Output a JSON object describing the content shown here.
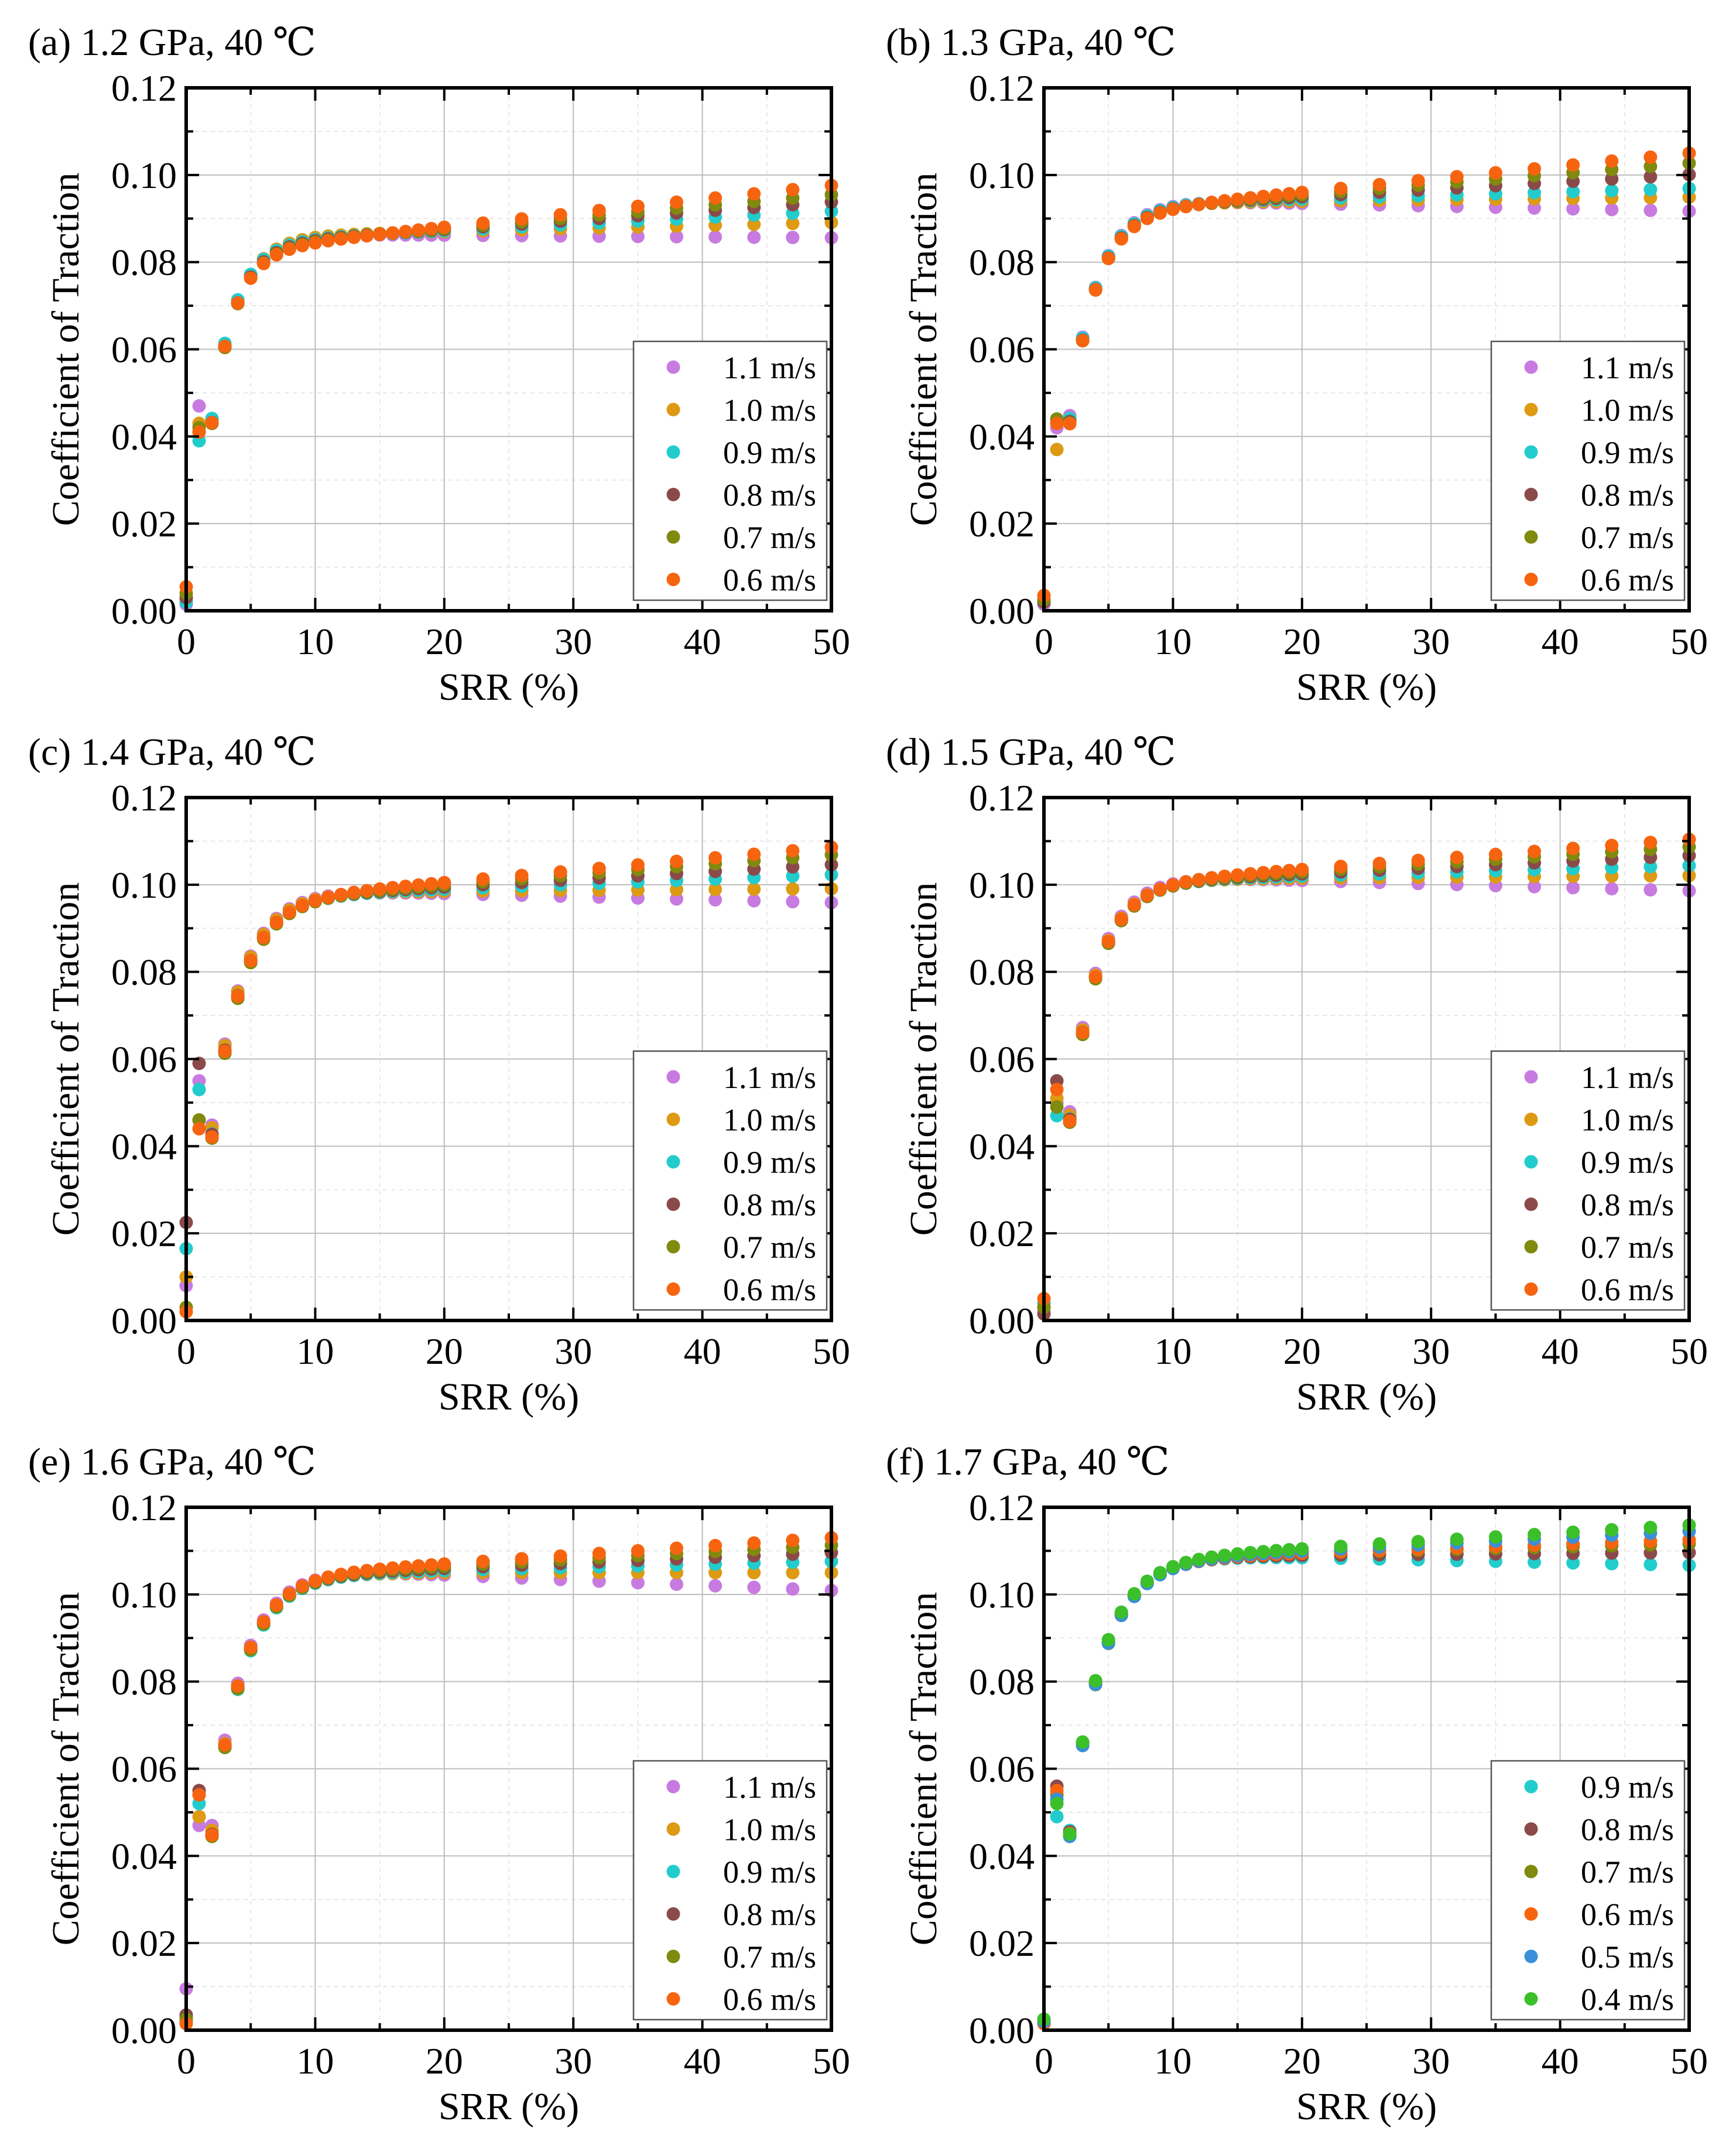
{
  "colors": {
    "1.1 m/s": "#c77be0",
    "1.0 m/s": "#dd9a12",
    "0.9 m/s": "#22cccc",
    "0.8 m/s": "#8b4a4a",
    "0.7 m/s": "#7f8a0e",
    "0.6 m/s": "#f76410",
    "0.5 m/s": "#3a8fd8",
    "0.4 m/s": "#3cc02a"
  },
  "chart_data": [
    {
      "type": "scatter",
      "panel_label": "(a) 1.2 GPa, 40 ℃",
      "xlabel": "SRR (%)",
      "ylabel": "Coefficient of Traction",
      "xlim": [
        0,
        50
      ],
      "ylim": [
        0,
        0.12
      ],
      "x_ticks": [
        "0",
        "10",
        "20",
        "30",
        "40",
        "50"
      ],
      "y_ticks": [
        "0.00",
        "0.02",
        "0.04",
        "0.06",
        "0.08",
        "0.10",
        "0.12"
      ],
      "grid": true,
      "legend_position": "bottom-right",
      "series": [
        {
          "name": "1.1 m/s",
          "start": 0.0015,
          "c1": 0.047,
          "a2": 0.0862,
          "k": 0.5,
          "slope": -2e-05
        },
        {
          "name": "1.0 m/s",
          "start": 0.0025,
          "c1": 0.043,
          "a2": 0.087,
          "k": 0.52,
          "slope": 7e-05
        },
        {
          "name": "0.9 m/s",
          "start": 0.002,
          "c1": 0.039,
          "a2": 0.0872,
          "k": 0.55,
          "slope": 0.00015
        },
        {
          "name": "0.8 m/s",
          "start": 0.003,
          "c1": 0.041,
          "a2": 0.0875,
          "k": 0.55,
          "slope": 0.00021
        },
        {
          "name": "0.7 m/s",
          "start": 0.004,
          "c1": 0.042,
          "a2": 0.0877,
          "k": 0.56,
          "slope": 0.00026
        },
        {
          "name": "0.6 m/s",
          "start": 0.0055,
          "c1": 0.041,
          "a2": 0.088,
          "k": 0.58,
          "slope": 0.00032
        }
      ]
    },
    {
      "type": "scatter",
      "panel_label": "(b) 1.3 GPa, 40 ℃",
      "xlabel": "SRR (%)",
      "ylabel": "Coefficient of Traction",
      "xlim": [
        0,
        50
      ],
      "ylim": [
        0,
        0.12
      ],
      "x_ticks": [
        "0",
        "10",
        "20",
        "30",
        "40",
        "50"
      ],
      "y_ticks": [
        "0.00",
        "0.02",
        "0.04",
        "0.06",
        "0.08",
        "0.10",
        "0.12"
      ],
      "grid": true,
      "legend_position": "bottom-right",
      "series": [
        {
          "name": "1.1 m/s",
          "start": 0.0015,
          "c1": 0.042,
          "a2": 0.0935,
          "k": 0.45,
          "slope": -6e-05
        },
        {
          "name": "1.0 m/s",
          "start": 0.0025,
          "c1": 0.037,
          "a2": 0.094,
          "k": 0.46,
          "slope": 3e-05
        },
        {
          "name": "0.9 m/s",
          "start": 0.002,
          "c1": 0.044,
          "a2": 0.0945,
          "k": 0.47,
          "slope": 8e-05
        },
        {
          "name": "0.8 m/s",
          "start": 0.002,
          "c1": 0.043,
          "a2": 0.095,
          "k": 0.48,
          "slope": 0.00017
        },
        {
          "name": "0.7 m/s",
          "start": 0.0025,
          "c1": 0.044,
          "a2": 0.0955,
          "k": 0.49,
          "slope": 0.00024
        },
        {
          "name": "0.6 m/s",
          "start": 0.0035,
          "c1": 0.043,
          "a2": 0.096,
          "k": 0.5,
          "slope": 0.0003
        }
      ]
    },
    {
      "type": "scatter",
      "panel_label": "(c) 1.4 GPa, 40 ℃",
      "xlabel": "SRR (%)",
      "ylabel": "Coefficient of Traction",
      "xlim": [
        0,
        50
      ],
      "ylim": [
        0,
        0.12
      ],
      "x_ticks": [
        "0",
        "10",
        "20",
        "30",
        "40",
        "50"
      ],
      "y_ticks": [
        "0.00",
        "0.02",
        "0.04",
        "0.06",
        "0.08",
        "0.10",
        "0.12"
      ],
      "grid": true,
      "legend_position": "bottom-right",
      "series": [
        {
          "name": "1.1 m/s",
          "start": 0.008,
          "c1": 0.055,
          "a2": 0.098,
          "k": 0.42,
          "slope": -7e-05
        },
        {
          "name": "1.0 m/s",
          "start": 0.01,
          "c1": 0.046,
          "a2": 0.0985,
          "k": 0.43,
          "slope": 2e-05
        },
        {
          "name": "0.9 m/s",
          "start": 0.0165,
          "c1": 0.053,
          "a2": 0.099,
          "k": 0.43,
          "slope": 0.00011
        },
        {
          "name": "0.8 m/s",
          "start": 0.0225,
          "c1": 0.059,
          "a2": 0.0995,
          "k": 0.44,
          "slope": 0.00017
        },
        {
          "name": "0.7 m/s",
          "start": 0.003,
          "c1": 0.046,
          "a2": 0.1,
          "k": 0.44,
          "slope": 0.00023
        },
        {
          "name": "0.6 m/s",
          "start": 0.002,
          "c1": 0.044,
          "a2": 0.1005,
          "k": 0.45,
          "slope": 0.00027
        }
      ]
    },
    {
      "type": "scatter",
      "panel_label": "(d) 1.5 GPa, 40 ℃",
      "xlabel": "SRR (%)",
      "ylabel": "Coefficient of Traction",
      "xlim": [
        0,
        50
      ],
      "ylim": [
        0,
        0.12
      ],
      "x_ticks": [
        "0",
        "10",
        "20",
        "30",
        "40",
        "50"
      ],
      "y_ticks": [
        "0.00",
        "0.02",
        "0.04",
        "0.06",
        "0.08",
        "0.10",
        "0.12"
      ],
      "grid": true,
      "legend_position": "bottom-right",
      "series": [
        {
          "name": "1.1 m/s",
          "start": 0.002,
          "c1": 0.05,
          "a2": 0.101,
          "k": 0.44,
          "slope": -8e-05
        },
        {
          "name": "1.0 m/s",
          "start": 0.003,
          "c1": 0.051,
          "a2": 0.1015,
          "k": 0.45,
          "slope": 2e-05
        },
        {
          "name": "0.9 m/s",
          "start": 0.004,
          "c1": 0.047,
          "a2": 0.102,
          "k": 0.45,
          "slope": 8e-05
        },
        {
          "name": "0.8 m/s",
          "start": 0.0015,
          "c1": 0.055,
          "a2": 0.1025,
          "k": 0.46,
          "slope": 0.00014
        },
        {
          "name": "0.7 m/s",
          "start": 0.003,
          "c1": 0.049,
          "a2": 0.103,
          "k": 0.46,
          "slope": 0.00019
        },
        {
          "name": "0.6 m/s",
          "start": 0.005,
          "c1": 0.053,
          "a2": 0.1035,
          "k": 0.47,
          "slope": 0.00023
        }
      ]
    },
    {
      "type": "scatter",
      "panel_label": "(e) 1.6 GPa, 40 ℃",
      "xlabel": "SRR (%)",
      "ylabel": "Coefficient of Traction",
      "xlim": [
        0,
        50
      ],
      "ylim": [
        0,
        0.12
      ],
      "x_ticks": [
        "0",
        "10",
        "20",
        "30",
        "40",
        "50"
      ],
      "y_ticks": [
        "0.00",
        "0.02",
        "0.04",
        "0.06",
        "0.08",
        "0.10",
        "0.12"
      ],
      "grid": true,
      "legend_position": "bottom-right",
      "series": [
        {
          "name": "1.1 m/s",
          "start": 0.0095,
          "c1": 0.047,
          "a2": 0.1045,
          "k": 0.4,
          "slope": -0.00012
        },
        {
          "name": "1.0 m/s",
          "start": 0.003,
          "c1": 0.049,
          "a2": 0.105,
          "k": 0.41,
          "slope": 0.0
        },
        {
          "name": "0.9 m/s",
          "start": 0.002,
          "c1": 0.052,
          "a2": 0.1055,
          "k": 0.41,
          "slope": 7e-05
        },
        {
          "name": "0.8 m/s",
          "start": 0.0035,
          "c1": 0.055,
          "a2": 0.106,
          "k": 0.42,
          "slope": 0.00012
        },
        {
          "name": "0.7 m/s",
          "start": 0.0025,
          "c1": 0.054,
          "a2": 0.1065,
          "k": 0.42,
          "slope": 0.00016
        },
        {
          "name": "0.6 m/s",
          "start": 0.0015,
          "c1": 0.054,
          "a2": 0.107,
          "k": 0.43,
          "slope": 0.0002
        }
      ]
    },
    {
      "type": "scatter",
      "panel_label": "(f) 1.7 GPa, 40 ℃",
      "xlabel": "SRR (%)",
      "ylabel": "Coefficient of Traction",
      "xlim": [
        0,
        50
      ],
      "ylim": [
        0,
        0.12
      ],
      "x_ticks": [
        "0",
        "10",
        "20",
        "30",
        "40",
        "50"
      ],
      "y_ticks": [
        "0.00",
        "0.02",
        "0.04",
        "0.06",
        "0.08",
        "0.10",
        "0.12"
      ],
      "grid": true,
      "legend_position": "bottom-right",
      "series": [
        {
          "name": "0.9 m/s",
          "start": 0.0015,
          "c1": 0.049,
          "a2": 0.1085,
          "k": 0.38,
          "slope": -6e-05
        },
        {
          "name": "0.8 m/s",
          "start": 0.002,
          "c1": 0.056,
          "a2": 0.109,
          "k": 0.39,
          "slope": 2e-05
        },
        {
          "name": "0.7 m/s",
          "start": 0.0025,
          "c1": 0.054,
          "a2": 0.1095,
          "k": 0.39,
          "slope": 7e-05
        },
        {
          "name": "0.6 m/s",
          "start": 0.0015,
          "c1": 0.055,
          "a2": 0.1095,
          "k": 0.4,
          "slope": 0.0001
        },
        {
          "name": "0.5 m/s",
          "start": 0.002,
          "c1": 0.053,
          "a2": 0.11,
          "k": 0.4,
          "slope": 0.00015
        },
        {
          "name": "0.4 m/s",
          "start": 0.0025,
          "c1": 0.052,
          "a2": 0.1105,
          "k": 0.41,
          "slope": 0.00018
        }
      ]
    }
  ]
}
